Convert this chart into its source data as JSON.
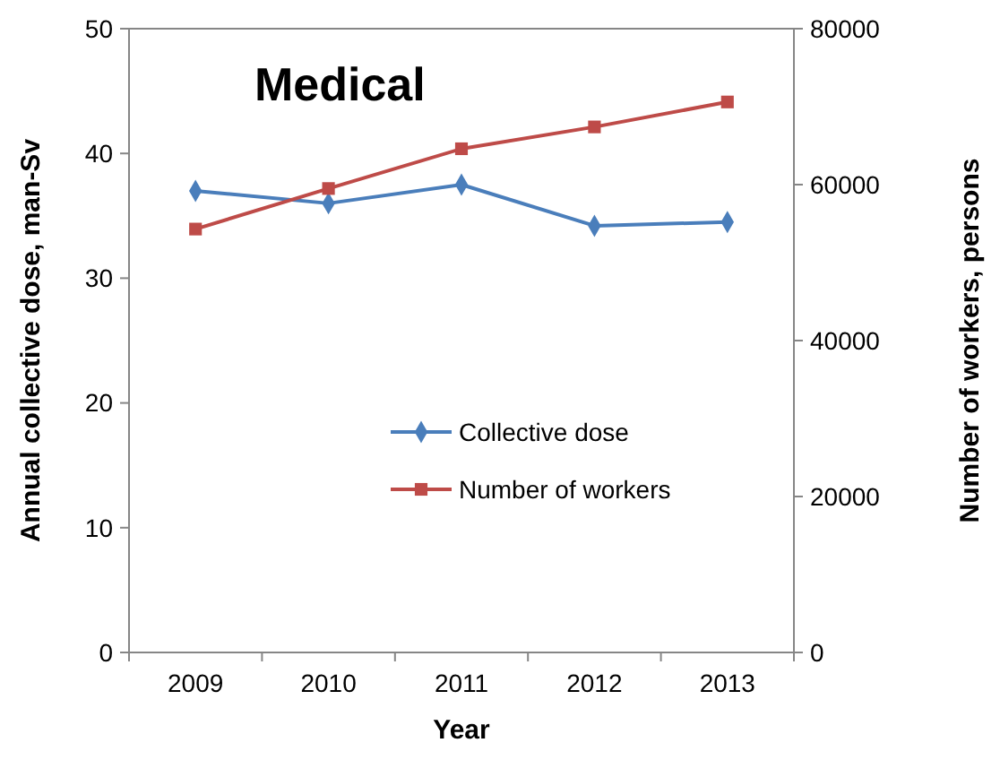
{
  "chart_data": {
    "type": "line",
    "title": "Medical",
    "xlabel": "Year",
    "ylabel": "Annual collective dose, man-Sv",
    "y2label": "Number of workers, persons",
    "categories": [
      "2009",
      "2010",
      "2011",
      "2012",
      "2013"
    ],
    "series": [
      {
        "name": "Collective dose",
        "color": "#4a7ebb",
        "marker": "diamond",
        "values": [
          37,
          36,
          37.5,
          34.2,
          34.5
        ]
      },
      {
        "name": "Number of workers",
        "color": "#be4b48",
        "marker": "square",
        "axis": "y2",
        "values": [
          54300,
          59500,
          64600,
          67400,
          70600
        ]
      }
    ],
    "ylim": [
      0,
      50
    ],
    "yticks": [
      0,
      10,
      20,
      30,
      40,
      50
    ],
    "y2lim": [
      0,
      80000
    ],
    "y2ticks": [
      0,
      20000,
      40000,
      60000,
      80000
    ],
    "legend": "center",
    "grid": false
  }
}
